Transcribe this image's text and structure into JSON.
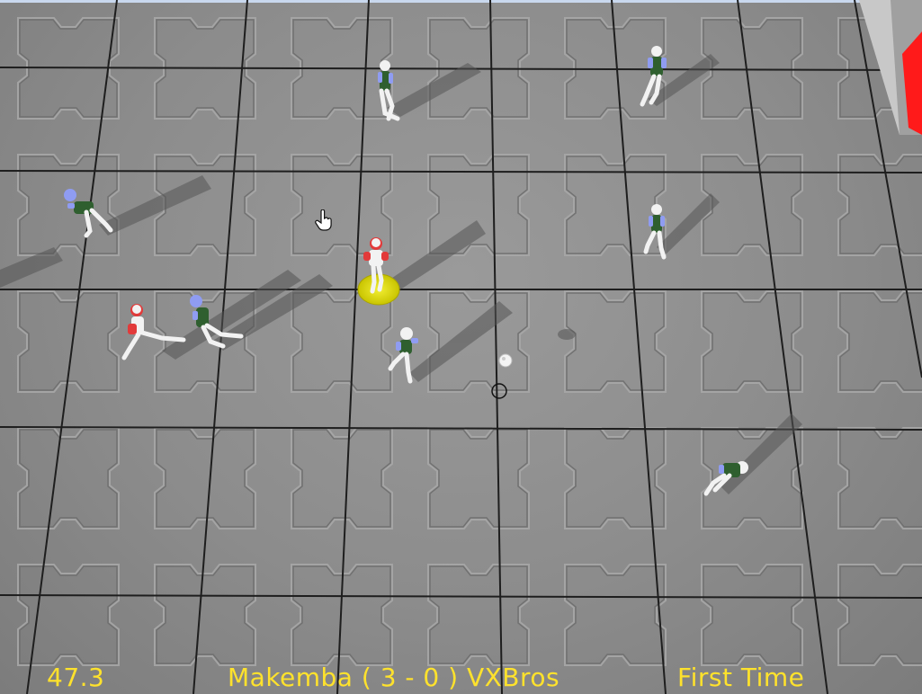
{
  "hud": {
    "time": "47.3",
    "score": "Makemba ( 3 - 0 ) VXBros",
    "period": "First Time"
  },
  "teams": {
    "home": {
      "name": "Makemba",
      "color": "#e23a3a"
    },
    "away": {
      "name": "VXBros",
      "color": "#8f9cf2"
    }
  },
  "colors": {
    "hud_text": "#ffe22c",
    "field": "#8c8c8c",
    "goal_post": "#ff1a1a",
    "selected_ring": "#e6e100"
  },
  "icons": {
    "cursor": "hand-pointer-icon",
    "ball": "ball-icon",
    "ball_target": "target-ring-icon"
  }
}
